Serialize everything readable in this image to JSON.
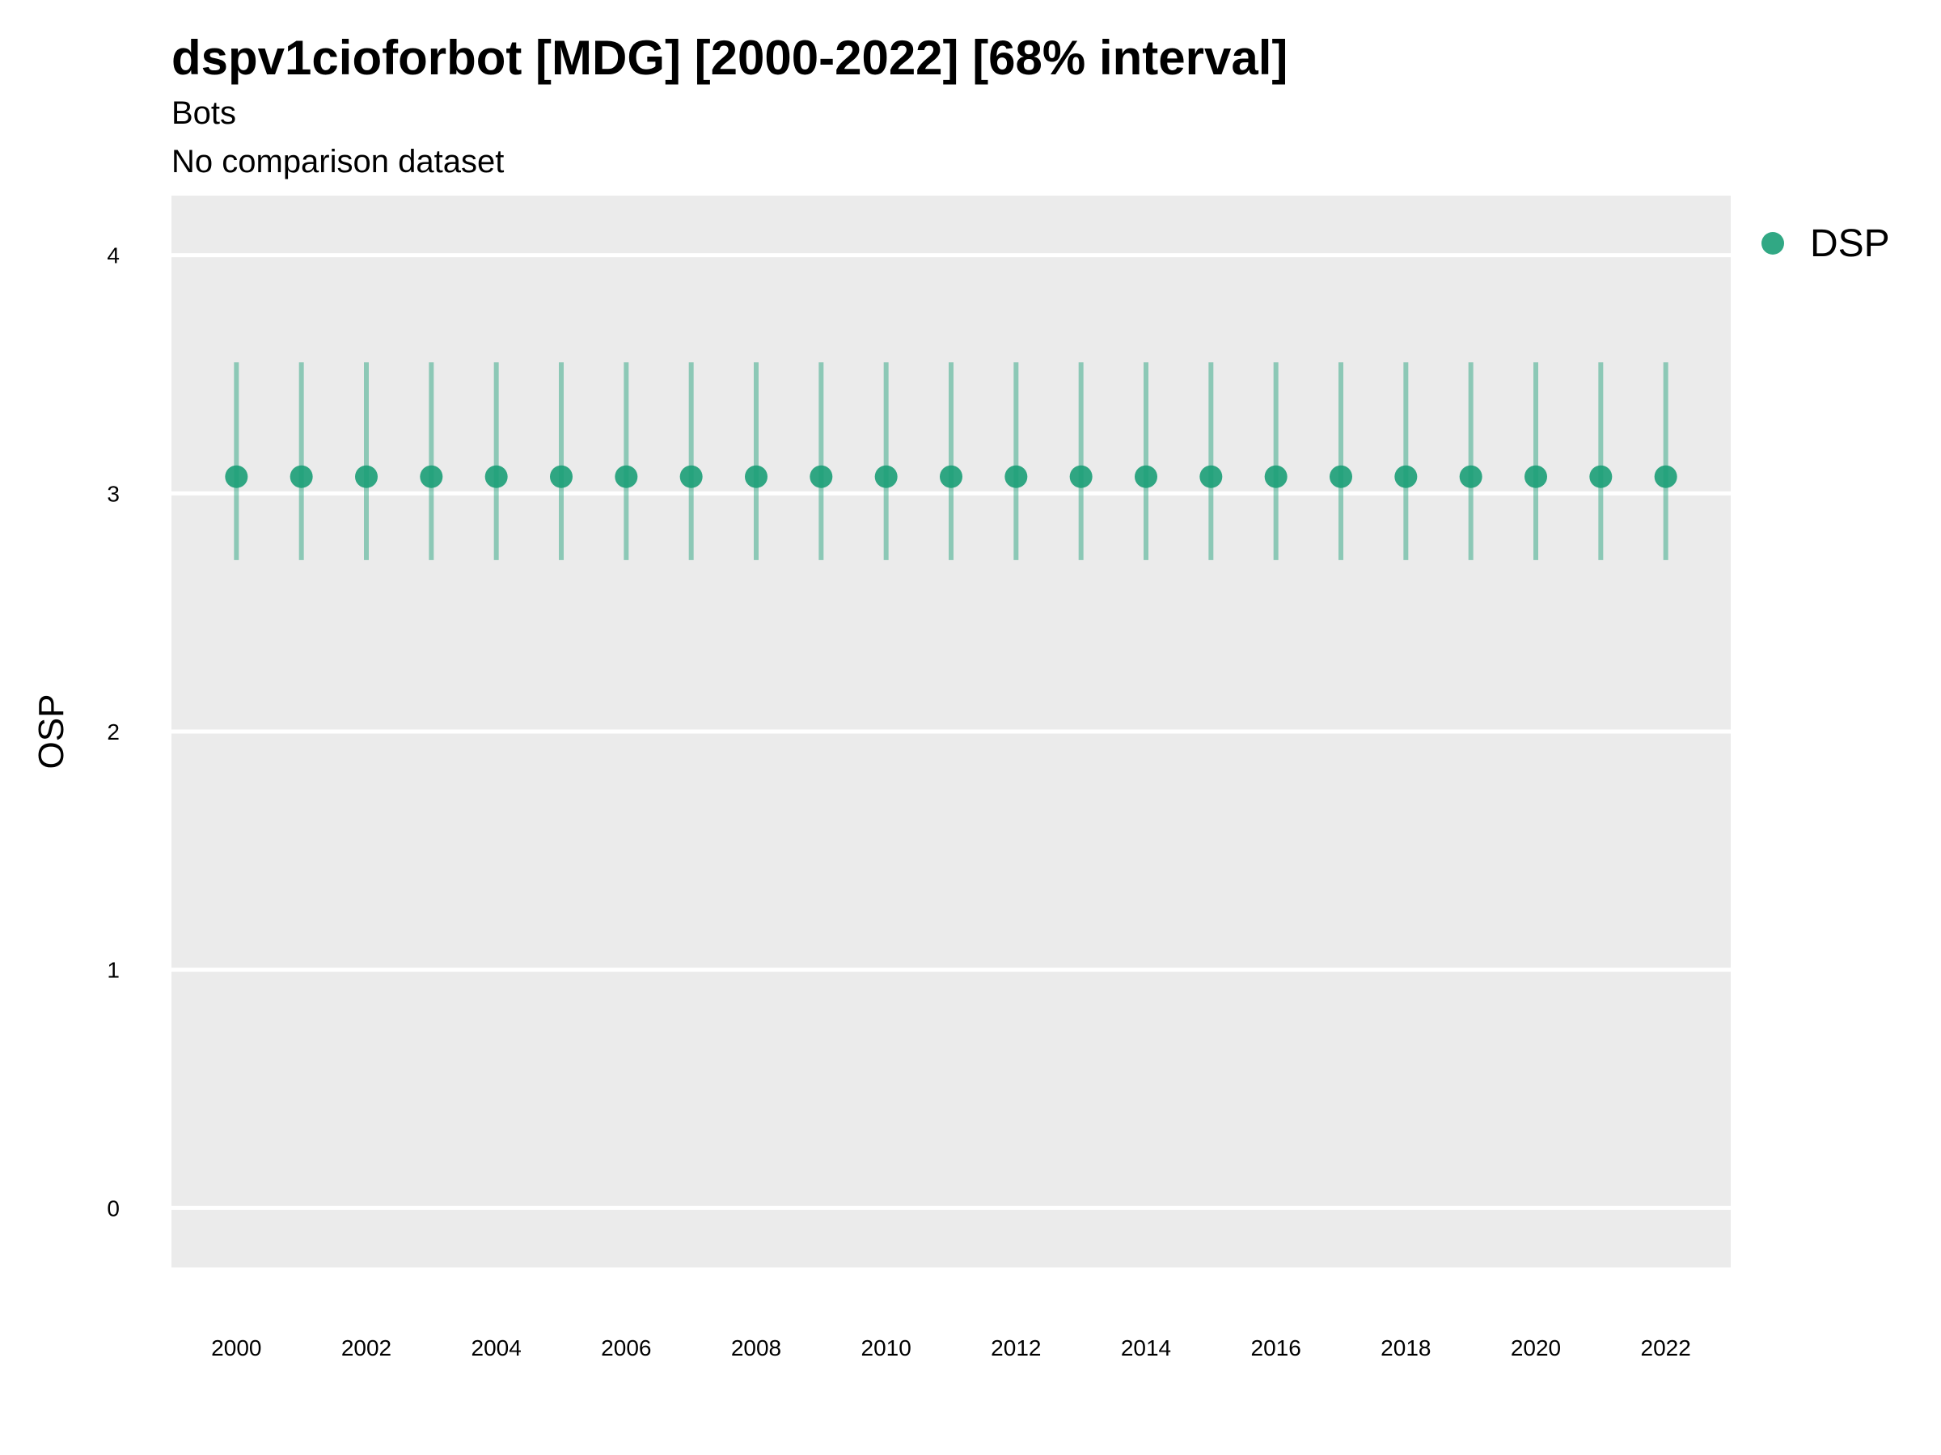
{
  "chart_data": {
    "type": "scatter",
    "title": "dspv1cioforbot [MDG] [2000-2022] [68% interval]",
    "subtitle": "Bots",
    "caption_line": "No comparison dataset",
    "xlabel": "",
    "ylabel": "OSP",
    "x_ticks": [
      "2000",
      "2002",
      "2004",
      "2006",
      "2008",
      "2010",
      "2012",
      "2014",
      "2016",
      "2018",
      "2020",
      "2022"
    ],
    "y_ticks": [
      "0",
      "1",
      "2",
      "3",
      "4"
    ],
    "xlim": [
      1999,
      2023
    ],
    "ylim": [
      -0.25,
      4.25
    ],
    "grid": "horizontal major lines",
    "legend": {
      "placement": "top-right, outside plot",
      "entries": [
        "DSP"
      ]
    },
    "series": [
      {
        "name": "DSP",
        "color": "#1b9e77",
        "x": [
          2000,
          2001,
          2002,
          2003,
          2004,
          2005,
          2006,
          2007,
          2008,
          2009,
          2010,
          2011,
          2012,
          2013,
          2014,
          2015,
          2016,
          2017,
          2018,
          2019,
          2020,
          2021,
          2022
        ],
        "y": [
          3.07,
          3.07,
          3.07,
          3.07,
          3.07,
          3.07,
          3.07,
          3.07,
          3.07,
          3.07,
          3.07,
          3.07,
          3.07,
          3.07,
          3.07,
          3.07,
          3.07,
          3.07,
          3.07,
          3.07,
          3.07,
          3.07,
          3.07
        ],
        "lower": [
          2.72,
          2.72,
          2.72,
          2.72,
          2.72,
          2.72,
          2.72,
          2.72,
          2.72,
          2.72,
          2.72,
          2.72,
          2.72,
          2.72,
          2.72,
          2.72,
          2.72,
          2.72,
          2.72,
          2.72,
          2.72,
          2.72,
          2.72
        ],
        "upper": [
          3.55,
          3.55,
          3.55,
          3.55,
          3.55,
          3.55,
          3.55,
          3.55,
          3.55,
          3.55,
          3.55,
          3.55,
          3.55,
          3.55,
          3.55,
          3.55,
          3.55,
          3.55,
          3.55,
          3.55,
          3.55,
          3.55,
          3.55
        ]
      }
    ]
  }
}
